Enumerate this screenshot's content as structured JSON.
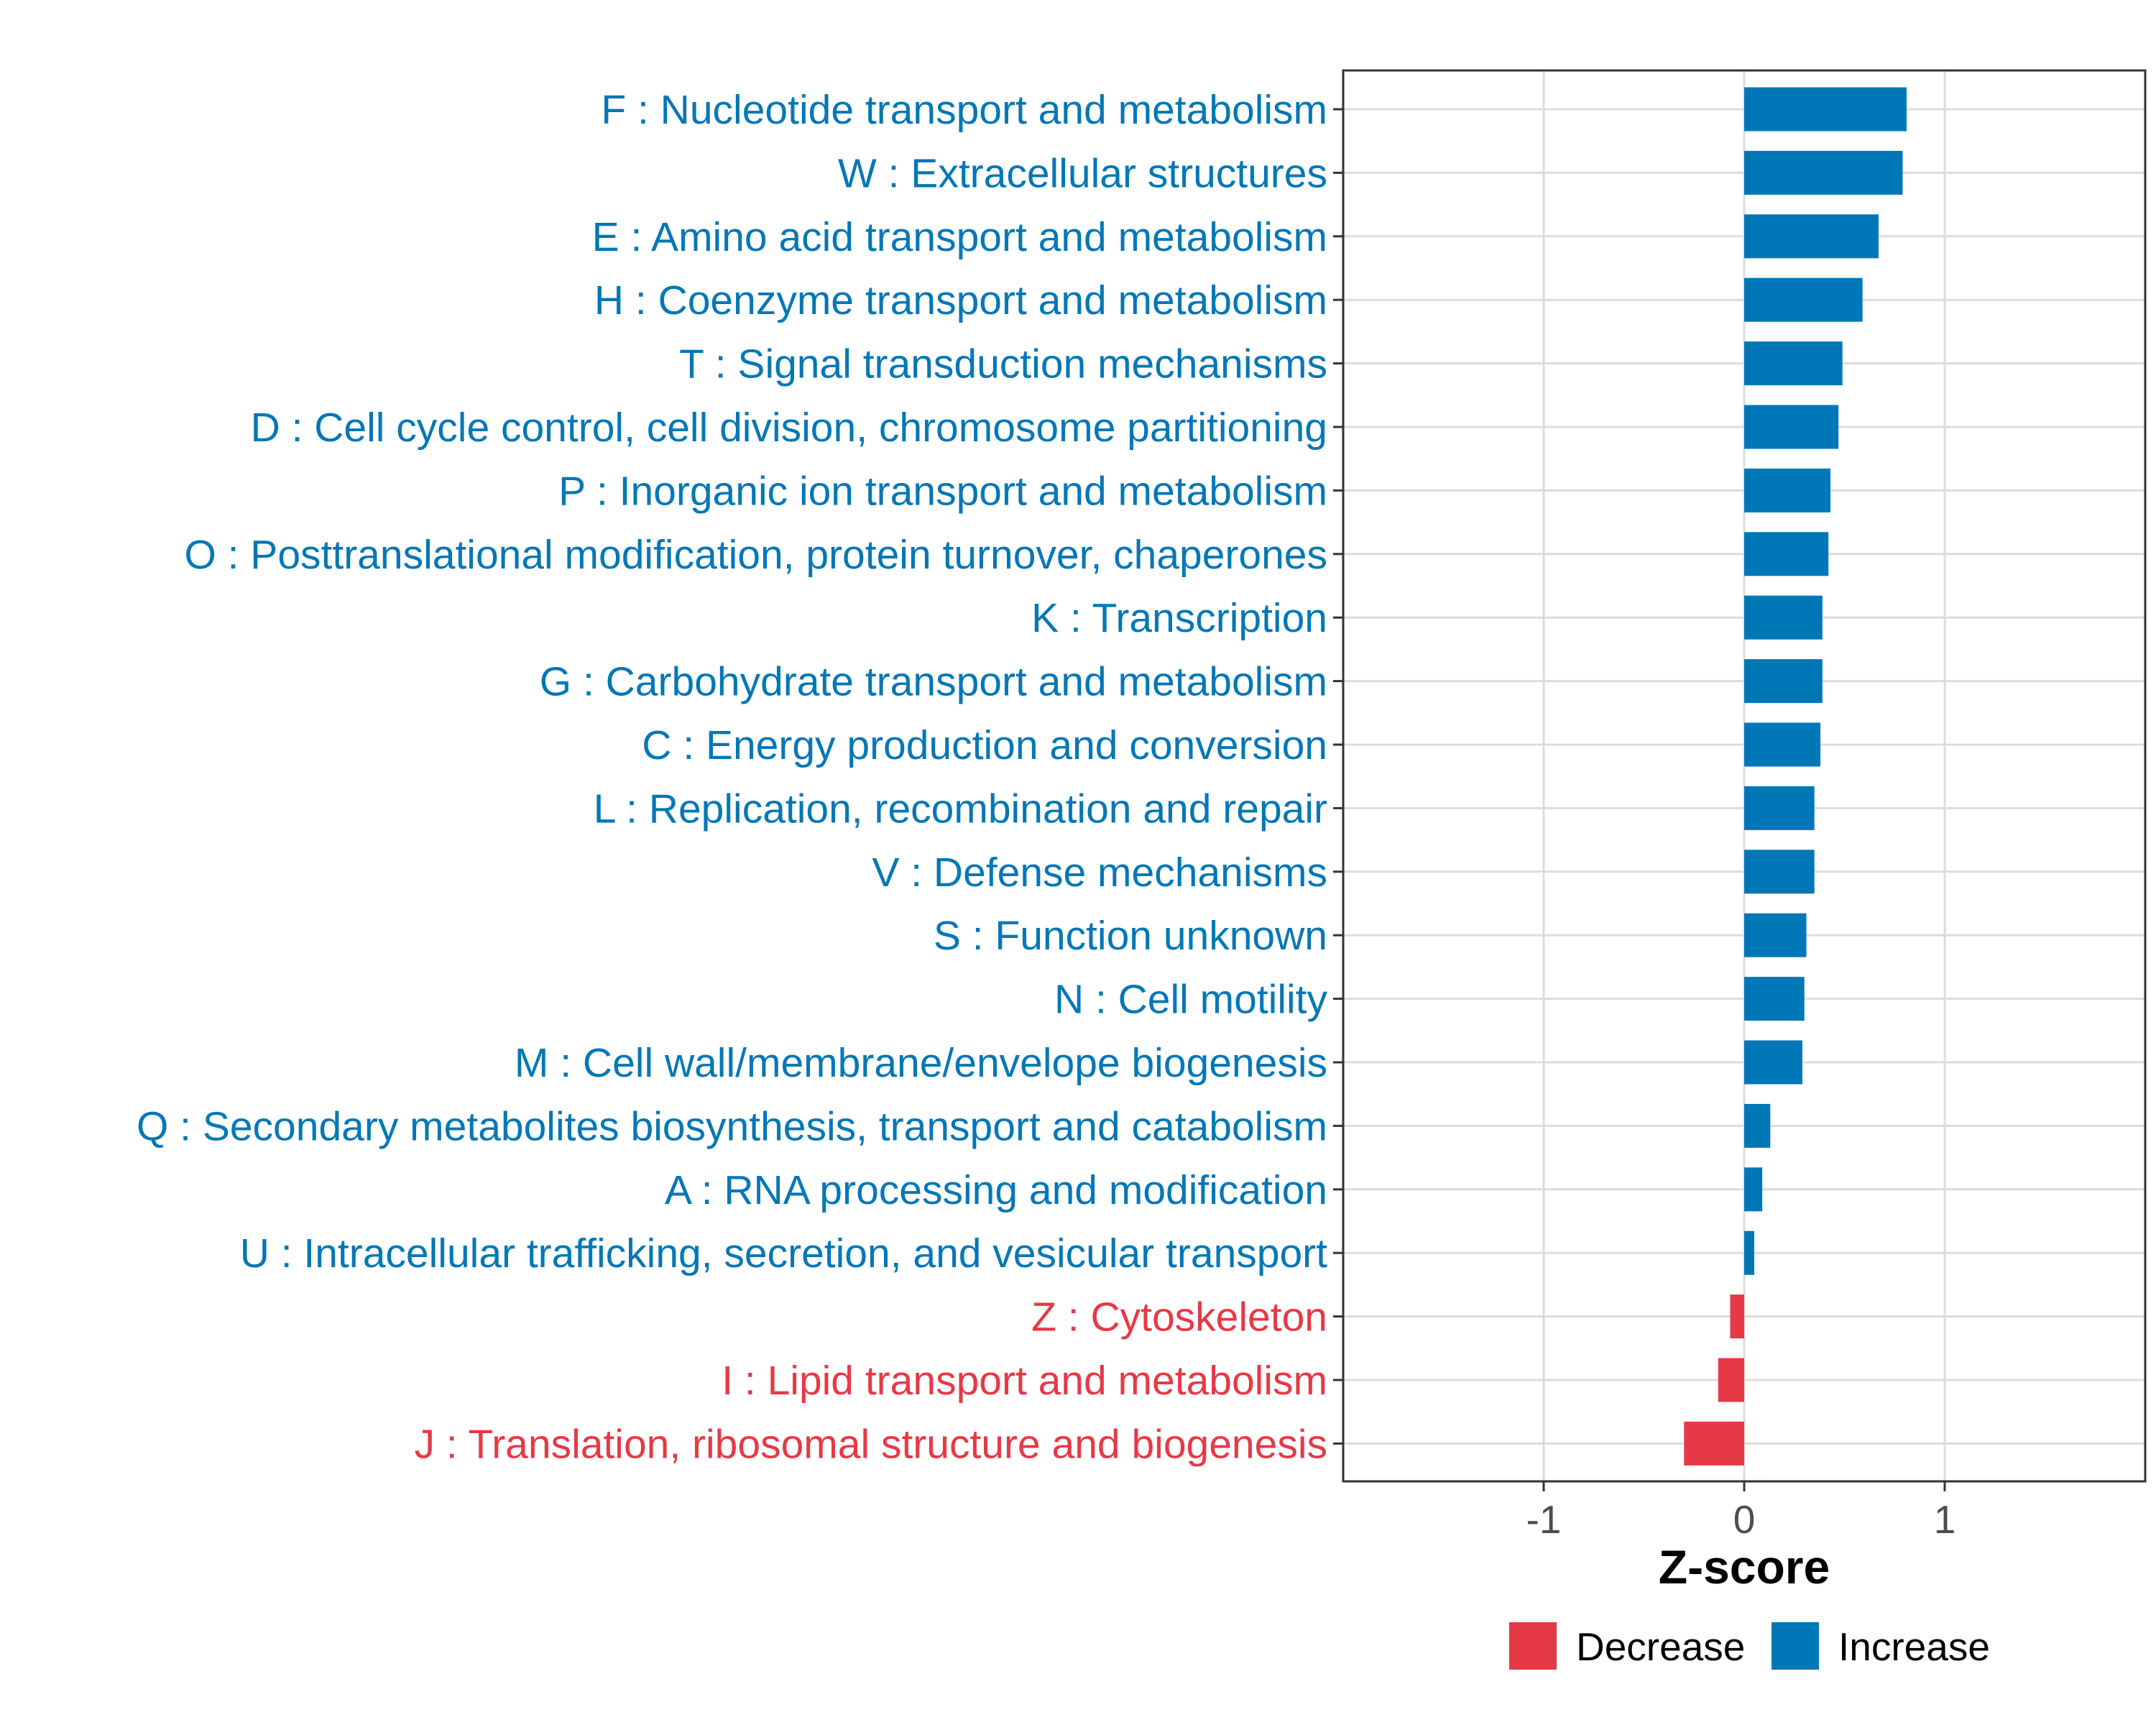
{
  "chart_data": {
    "type": "bar",
    "orientation": "horizontal",
    "title": "",
    "xlabel": "Z-score",
    "ylabel": "",
    "xlim": [
      -2,
      2
    ],
    "xticks": [
      -1,
      0,
      1
    ],
    "xtick_labels": [
      "-1",
      "0",
      "1"
    ],
    "grid": true,
    "colors": {
      "Decrease": "#e63946",
      "Increase": "#0077b6"
    },
    "categories": [
      "F : Nucleotide transport and metabolism",
      "W : Extracellular structures",
      "E : Amino acid transport and metabolism",
      "H : Coenzyme transport and metabolism",
      "T : Signal transduction mechanisms",
      "D : Cell cycle control, cell division, chromosome partitioning",
      "P : Inorganic ion transport and metabolism",
      "O : Posttranslational modification, protein turnover, chaperones",
      "K : Transcription",
      "G : Carbohydrate transport and metabolism",
      "C : Energy production and conversion",
      "L : Replication, recombination and repair",
      "V : Defense mechanisms",
      "S : Function unknown",
      "N : Cell motility",
      "M : Cell wall/membrane/envelope biogenesis",
      "Q : Secondary metabolites biosynthesis, transport and catabolism",
      "A : RNA processing and modification",
      "U : Intracellular trafficking, secretion, and vesicular transport",
      "Z : Cytoskeleton",
      "I : Lipid transport and metabolism",
      "J : Translation, ribosomal structure and biogenesis"
    ],
    "values": [
      0.81,
      0.79,
      0.67,
      0.59,
      0.49,
      0.47,
      0.43,
      0.42,
      0.39,
      0.39,
      0.38,
      0.35,
      0.35,
      0.31,
      0.3,
      0.29,
      0.13,
      0.09,
      0.05,
      -0.07,
      -0.13,
      -0.3
    ],
    "groups": [
      "Increase",
      "Increase",
      "Increase",
      "Increase",
      "Increase",
      "Increase",
      "Increase",
      "Increase",
      "Increase",
      "Increase",
      "Increase",
      "Increase",
      "Increase",
      "Increase",
      "Increase",
      "Increase",
      "Increase",
      "Increase",
      "Increase",
      "Decrease",
      "Decrease",
      "Decrease"
    ],
    "legend": {
      "position": "bottom",
      "entries": [
        "Decrease",
        "Increase"
      ]
    }
  }
}
